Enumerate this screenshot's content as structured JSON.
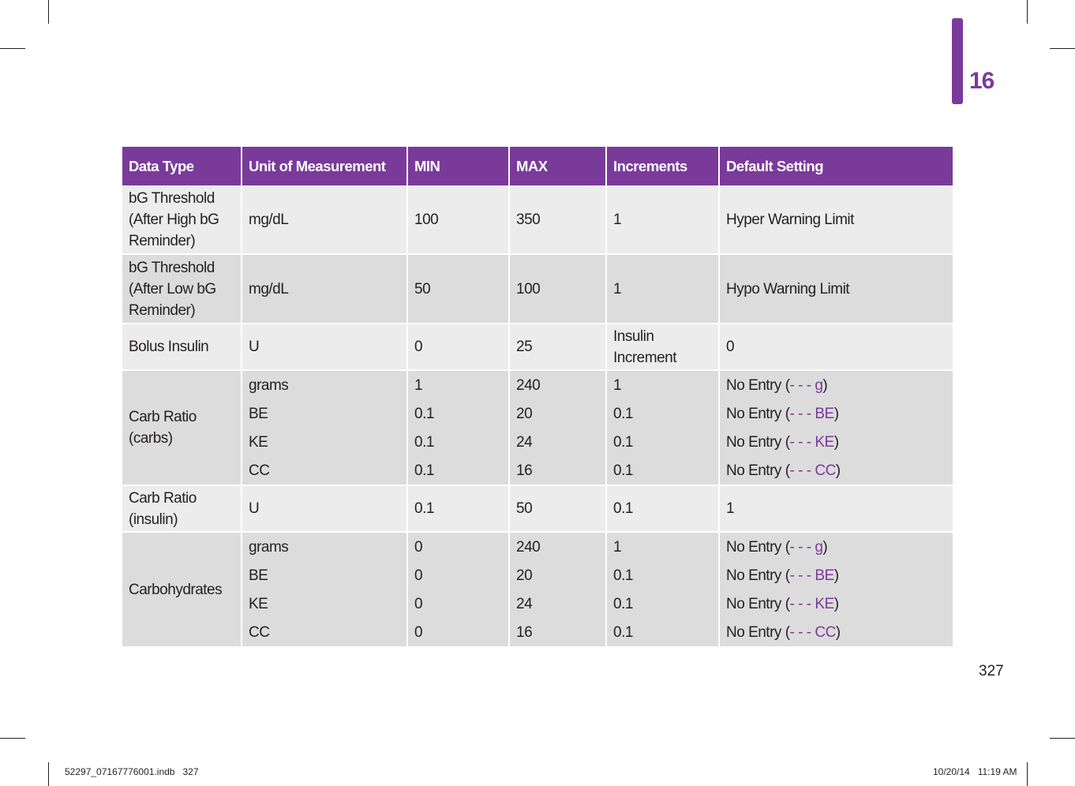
{
  "chapter_number": "16",
  "page_number": "327",
  "footer": {
    "file": "52297_07167776001.indb   327",
    "datetime": "10/20/14   11:19 AM"
  },
  "colors": {
    "accent": "#7a3a9a",
    "row_light": "#ececec",
    "row_dark": "#dcdcdc"
  },
  "table": {
    "headers": [
      "Data Type",
      "Unit of Measurement",
      "MIN",
      "MAX",
      "Increments",
      "Default Setting"
    ],
    "rows": [
      {
        "data_type": "bG Threshold (After High bG Reminder)",
        "unit": "mg/dL",
        "min": "100",
        "max": "350",
        "increments": "1",
        "default": "Hyper Warning Limit"
      },
      {
        "data_type": "bG Threshold (After Low bG Reminder)",
        "unit": "mg/dL",
        "min": "50",
        "max": "100",
        "increments": "1",
        "default": "Hypo Warning Limit"
      },
      {
        "data_type": "Bolus Insulin",
        "unit": "U",
        "min": "0",
        "max": "25",
        "increments": "Insulin Increment",
        "default": "0"
      }
    ],
    "carb_ratio_carbs": {
      "data_type": "Carb Ratio (carbs)",
      "sub": [
        {
          "unit": "grams",
          "min": "1",
          "max": "240",
          "increments": "1",
          "default_prefix": "No Entry (",
          "default_code": "- - - g",
          "default_suffix": ")"
        },
        {
          "unit": "BE",
          "min": "0.1",
          "max": "20",
          "increments": "0.1",
          "default_prefix": "No Entry (",
          "default_code": "- - - BE",
          "default_suffix": ")"
        },
        {
          "unit": "KE",
          "min": "0.1",
          "max": "24",
          "increments": "0.1",
          "default_prefix": "No Entry (",
          "default_code": "- - - KE",
          "default_suffix": ")"
        },
        {
          "unit": "CC",
          "min": "0.1",
          "max": "16",
          "increments": "0.1",
          "default_prefix": "No Entry (",
          "default_code": "- - - CC",
          "default_suffix": ")"
        }
      ]
    },
    "carb_ratio_insulin": {
      "data_type": "Carb Ratio (insulin)",
      "unit": "U",
      "min": "0.1",
      "max": "50",
      "increments": "0.1",
      "default": "1"
    },
    "carbohydrates": {
      "data_type": "Carbohydrates",
      "sub": [
        {
          "unit": "grams",
          "min": "0",
          "max": "240",
          "increments": "1",
          "default_prefix": "No Entry (",
          "default_code": "- - - g",
          "default_suffix": ")"
        },
        {
          "unit": "BE",
          "min": "0",
          "max": "20",
          "increments": "0.1",
          "default_prefix": "No Entry (",
          "default_code": "- - - BE",
          "default_suffix": ")"
        },
        {
          "unit": "KE",
          "min": "0",
          "max": "24",
          "increments": "0.1",
          "default_prefix": "No Entry (",
          "default_code": "- - - KE",
          "default_suffix": ")"
        },
        {
          "unit": "CC",
          "min": "0",
          "max": "16",
          "increments": "0.1",
          "default_prefix": "No Entry (",
          "default_code": "- - - CC",
          "default_suffix": ")"
        }
      ]
    }
  }
}
